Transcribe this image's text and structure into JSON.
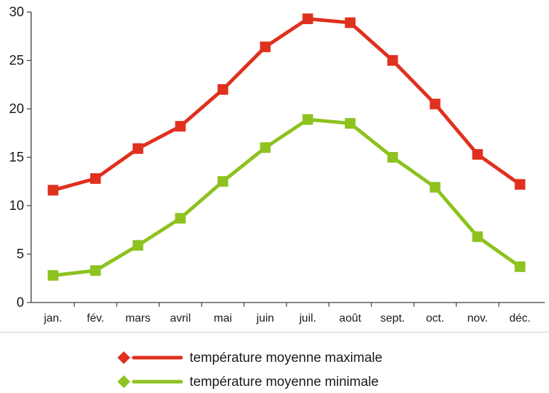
{
  "chart_data": {
    "type": "line",
    "categories": [
      "jan.",
      "fév.",
      "mars",
      "avril",
      "mai",
      "juin",
      "juil.",
      "août",
      "sept.",
      "oct.",
      "nov.",
      "déc."
    ],
    "series": [
      {
        "name": "température moyenne maximale",
        "color": "#e0301e",
        "values": [
          11.6,
          12.8,
          15.9,
          18.2,
          22.0,
          26.4,
          29.3,
          28.9,
          25.0,
          20.5,
          15.3,
          12.2
        ]
      },
      {
        "name": "température moyenne minimale",
        "color": "#8dc21f",
        "values": [
          2.8,
          3.3,
          5.9,
          8.7,
          12.5,
          16.0,
          18.9,
          18.5,
          15.0,
          11.9,
          6.8,
          3.7
        ]
      }
    ],
    "ylim": [
      0,
      30
    ],
    "yticks": [
      "0",
      "5",
      "10",
      "15",
      "20",
      "25",
      "30"
    ],
    "grid": false,
    "legend_position": "bottom",
    "title": "",
    "xlabel": "",
    "ylabel": ""
  }
}
